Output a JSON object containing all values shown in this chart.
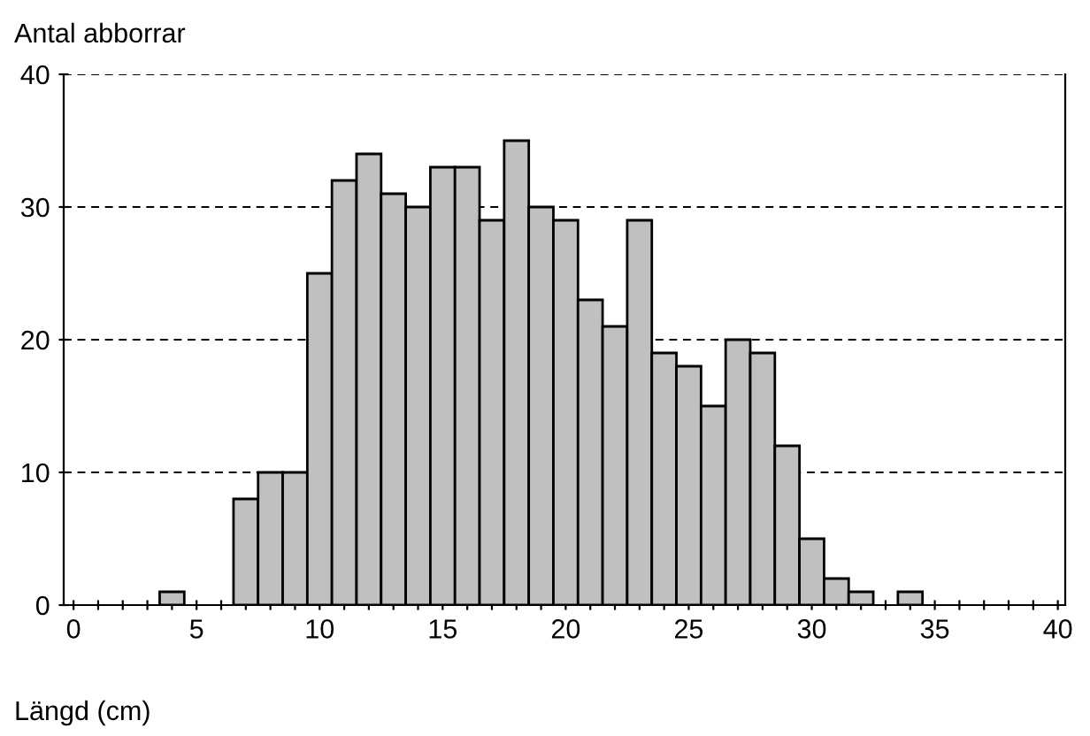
{
  "chart_data": {
    "type": "histogram",
    "ylabel": "Antal abborrar",
    "xlabel": "Längd (cm)",
    "bins": [
      3.5,
      4.5,
      5.5,
      6.5,
      7.5,
      8.5,
      9.5,
      10.5,
      11.5,
      12.5,
      13.5,
      14.5,
      15.5,
      16.5,
      17.5,
      18.5,
      19.5,
      20.5,
      21.5,
      22.5,
      23.5,
      24.5,
      25.5,
      26.5,
      27.5,
      28.5,
      29.5,
      30.5,
      31.5,
      32.5,
      33.5,
      34.5
    ],
    "values": [
      1,
      0,
      0,
      8,
      10,
      10,
      25,
      32,
      34,
      31,
      30,
      33,
      33,
      29,
      35,
      30,
      29,
      23,
      21,
      29,
      19,
      18,
      15,
      20,
      19,
      12,
      5,
      2,
      1,
      0,
      1
    ],
    "color": "#c0c0c0",
    "xlim": [
      -0.4,
      40.3
    ],
    "ylim": [
      0,
      40
    ],
    "xticks": [
      0,
      {
        "value": 1,
        "label": null
      },
      {
        "value": 2,
        "label": null
      },
      {
        "value": 3,
        "label": null
      },
      {
        "value": 4,
        "label": null
      },
      5,
      {
        "value": 6,
        "label": null
      },
      {
        "value": 7,
        "label": null
      },
      {
        "value": 8,
        "label": null
      },
      {
        "value": 9,
        "label": null
      },
      10,
      {
        "value": 11,
        "label": null
      },
      {
        "value": 12,
        "label": null
      },
      {
        "value": 13,
        "label": null
      },
      {
        "value": 14,
        "label": null
      },
      15,
      {
        "value": 16,
        "label": null
      },
      {
        "value": 17,
        "label": null
      },
      {
        "value": 18,
        "label": null
      },
      {
        "value": 19,
        "label": null
      },
      20,
      {
        "value": 21,
        "label": null
      },
      {
        "value": 22,
        "label": null
      },
      {
        "value": 23,
        "label": null
      },
      {
        "value": 24,
        "label": null
      },
      25,
      {
        "value": 26,
        "label": null
      },
      {
        "value": 27,
        "label": null
      },
      {
        "value": 28,
        "label": null
      },
      {
        "value": 29,
        "label": null
      },
      30,
      {
        "value": 31,
        "label": null
      },
      {
        "value": 32,
        "label": null
      },
      {
        "value": 33,
        "label": null
      },
      {
        "value": 34,
        "label": null
      },
      35,
      {
        "value": 36,
        "label": null
      },
      {
        "value": 37,
        "label": null
      },
      {
        "value": 38,
        "label": null
      },
      {
        "value": 39,
        "label": null
      },
      40
    ],
    "yticks": [
      0,
      10,
      20,
      30,
      40
    ],
    "grid": "y",
    "legend": false
  }
}
